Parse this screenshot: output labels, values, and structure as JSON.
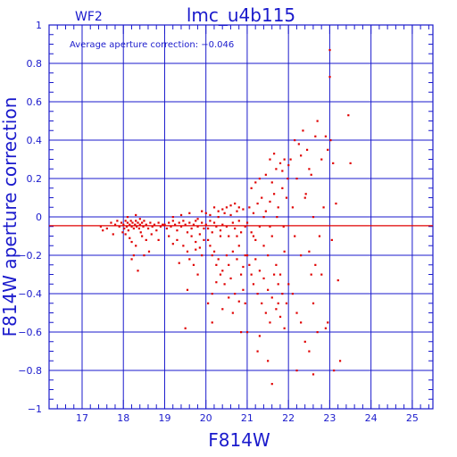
{
  "chart_data": {
    "type": "scatter",
    "title": "lmc_u4b115",
    "subtitle": "WF2",
    "xlabel": "F814W",
    "ylabel": "F814W aperture correction",
    "annotation": "Average aperture correction: −0.046",
    "xlim": [
      16.2,
      25.5
    ],
    "ylim": [
      -1,
      1
    ],
    "x_ticks": [
      17,
      18,
      19,
      20,
      21,
      22,
      23,
      24,
      25
    ],
    "y_ticks": [
      -1,
      -0.8,
      -0.6,
      -0.4,
      -0.2,
      0,
      0.2,
      0.4,
      0.6,
      0.8,
      1
    ],
    "x_tick_labels": [
      "17",
      "18",
      "19",
      "20",
      "21",
      "22",
      "23",
      "24",
      "25"
    ],
    "y_tick_labels": [
      "−1",
      "−0.8",
      "−0.6",
      "−0.4",
      "−0.2",
      "0",
      "0.2",
      "0.4",
      "0.6",
      "0.8",
      "1"
    ],
    "grid": true,
    "average_line": -0.046,
    "colors": {
      "axes": "#1a1acc",
      "points": "#e00000",
      "average_line": "#e00000"
    },
    "series": [
      {
        "points": [
          [
            17.45,
            -0.05
          ],
          [
            17.6,
            -0.06
          ],
          [
            17.7,
            -0.03
          ],
          [
            17.8,
            -0.04
          ],
          [
            17.85,
            -0.02
          ],
          [
            17.9,
            -0.05
          ],
          [
            17.95,
            -0.03
          ],
          [
            18.0,
            -0.04
          ],
          [
            18.02,
            -0.06
          ],
          [
            18.05,
            -0.02
          ],
          [
            18.08,
            -0.05
          ],
          [
            18.1,
            -0.03
          ],
          [
            18.12,
            -0.07
          ],
          [
            18.15,
            -0.04
          ],
          [
            18.18,
            -0.02
          ],
          [
            18.2,
            -0.05
          ],
          [
            18.22,
            -0.03
          ],
          [
            18.25,
            -0.06
          ],
          [
            18.28,
            -0.04
          ],
          [
            18.3,
            -0.02
          ],
          [
            18.32,
            -0.05
          ],
          [
            18.35,
            -0.03
          ],
          [
            18.38,
            -0.06
          ],
          [
            18.4,
            -0.04
          ],
          [
            18.42,
            -0.08
          ],
          [
            18.45,
            -0.03
          ],
          [
            18.48,
            -0.05
          ],
          [
            18.5,
            -0.02
          ],
          [
            18.55,
            -0.04
          ],
          [
            18.6,
            -0.06
          ],
          [
            18.65,
            -0.03
          ],
          [
            18.7,
            -0.05
          ],
          [
            18.75,
            -0.04
          ],
          [
            18.8,
            -0.07
          ],
          [
            18.85,
            -0.03
          ],
          [
            18.9,
            -0.05
          ],
          [
            18.95,
            -0.04
          ],
          [
            18.05,
            -0.09
          ],
          [
            18.15,
            -0.11
          ],
          [
            18.2,
            -0.13
          ],
          [
            18.3,
            -0.15
          ],
          [
            18.25,
            -0.2
          ],
          [
            18.35,
            -0.28
          ],
          [
            18.45,
            -0.1
          ],
          [
            18.55,
            -0.12
          ],
          [
            17.98,
            -0.08
          ],
          [
            18.1,
            0.0
          ],
          [
            18.3,
            0.01
          ],
          [
            18.4,
            -0.01
          ],
          [
            18.2,
            -0.22
          ],
          [
            18.5,
            -0.2
          ],
          [
            17.5,
            -0.07
          ],
          [
            17.75,
            -0.09
          ],
          [
            18.68,
            -0.09
          ],
          [
            18.85,
            -0.12
          ],
          [
            18.62,
            -0.18
          ],
          [
            19.0,
            -0.04
          ],
          [
            19.05,
            -0.06
          ],
          [
            19.1,
            -0.03
          ],
          [
            19.15,
            -0.05
          ],
          [
            19.2,
            -0.02
          ],
          [
            19.25,
            -0.04
          ],
          [
            19.3,
            -0.07
          ],
          [
            19.35,
            -0.03
          ],
          [
            19.4,
            -0.05
          ],
          [
            19.45,
            -0.02
          ],
          [
            19.5,
            -0.04
          ],
          [
            19.55,
            -0.08
          ],
          [
            19.6,
            -0.03
          ],
          [
            19.65,
            -0.06
          ],
          [
            19.7,
            -0.04
          ],
          [
            19.75,
            -0.02
          ],
          [
            19.8,
            -0.05
          ],
          [
            19.85,
            -0.09
          ],
          [
            19.9,
            -0.03
          ],
          [
            19.95,
            -0.06
          ],
          [
            19.1,
            -0.1
          ],
          [
            19.2,
            -0.14
          ],
          [
            19.3,
            -0.12
          ],
          [
            19.45,
            -0.15
          ],
          [
            19.55,
            -0.18
          ],
          [
            19.65,
            -0.1
          ],
          [
            19.75,
            -0.13
          ],
          [
            19.85,
            -0.16
          ],
          [
            19.95,
            -0.12
          ],
          [
            19.2,
            0.0
          ],
          [
            19.4,
            0.01
          ],
          [
            19.6,
            0.02
          ],
          [
            19.8,
            -0.01
          ],
          [
            19.9,
            0.03
          ],
          [
            19.5,
            -0.58
          ],
          [
            19.6,
            -0.22
          ],
          [
            19.7,
            -0.25
          ],
          [
            19.8,
            -0.3
          ],
          [
            19.9,
            -0.2
          ],
          [
            19.35,
            -0.24
          ],
          [
            19.55,
            -0.38
          ],
          [
            19.75,
            -0.17
          ],
          [
            20.0,
            -0.04
          ],
          [
            20.05,
            -0.06
          ],
          [
            20.1,
            -0.02
          ],
          [
            20.15,
            -0.08
          ],
          [
            20.2,
            -0.03
          ],
          [
            20.25,
            -0.05
          ],
          [
            20.3,
            0.0
          ],
          [
            20.35,
            -0.07
          ],
          [
            20.4,
            -0.04
          ],
          [
            20.45,
            0.02
          ],
          [
            20.5,
            -0.05
          ],
          [
            20.55,
            -0.1
          ],
          [
            20.6,
            0.01
          ],
          [
            20.65,
            -0.03
          ],
          [
            20.7,
            -0.06
          ],
          [
            20.75,
            0.03
          ],
          [
            20.8,
            -0.02
          ],
          [
            20.85,
            -0.08
          ],
          [
            20.9,
            0.04
          ],
          [
            20.95,
            -0.05
          ],
          [
            20.05,
            -0.12
          ],
          [
            20.1,
            -0.15
          ],
          [
            20.15,
            -0.2
          ],
          [
            20.2,
            -0.18
          ],
          [
            20.25,
            -0.25
          ],
          [
            20.3,
            -0.22
          ],
          [
            20.35,
            -0.3
          ],
          [
            20.4,
            -0.28
          ],
          [
            20.45,
            -0.35
          ],
          [
            20.5,
            -0.2
          ],
          [
            20.55,
            -0.25
          ],
          [
            20.6,
            -0.32
          ],
          [
            20.65,
            -0.18
          ],
          [
            20.7,
            -0.4
          ],
          [
            20.75,
            -0.22
          ],
          [
            20.8,
            -0.15
          ],
          [
            20.85,
            -0.3
          ],
          [
            20.9,
            -0.26
          ],
          [
            20.95,
            -0.2
          ],
          [
            20.05,
            -0.45
          ],
          [
            20.15,
            -0.55
          ],
          [
            20.25,
            -0.34
          ],
          [
            20.4,
            -0.48
          ],
          [
            20.55,
            -0.42
          ],
          [
            20.65,
            -0.5
          ],
          [
            20.8,
            -0.44
          ],
          [
            20.9,
            -0.38
          ],
          [
            20.0,
            0.02
          ],
          [
            20.2,
            0.05
          ],
          [
            20.4,
            0.04
          ],
          [
            20.6,
            0.06
          ],
          [
            20.8,
            0.05
          ],
          [
            20.1,
            0.01
          ],
          [
            20.3,
            0.03
          ],
          [
            20.5,
            0.05
          ],
          [
            20.7,
            0.07
          ],
          [
            20.15,
            -0.4
          ],
          [
            20.35,
            -0.1
          ],
          [
            20.75,
            -0.1
          ],
          [
            20.95,
            -0.45
          ],
          [
            20.85,
            -0.6
          ],
          [
            21.0,
            -0.03
          ],
          [
            21.05,
            0.05
          ],
          [
            21.1,
            -0.08
          ],
          [
            21.15,
            0.02
          ],
          [
            21.2,
            -0.12
          ],
          [
            21.25,
            0.07
          ],
          [
            21.3,
            -0.05
          ],
          [
            21.35,
            0.1
          ],
          [
            21.4,
            -0.15
          ],
          [
            21.45,
            0.03
          ],
          [
            21.5,
            -0.2
          ],
          [
            21.55,
            0.08
          ],
          [
            21.6,
            -0.1
          ],
          [
            21.65,
            0.12
          ],
          [
            21.7,
            -0.25
          ],
          [
            21.75,
            0.05
          ],
          [
            21.8,
            -0.3
          ],
          [
            21.85,
            0.15
          ],
          [
            21.9,
            -0.18
          ],
          [
            21.95,
            0.1
          ],
          [
            21.0,
            -0.2
          ],
          [
            21.05,
            -0.25
          ],
          [
            21.1,
            -0.3
          ],
          [
            21.15,
            -0.35
          ],
          [
            21.2,
            -0.22
          ],
          [
            21.25,
            -0.4
          ],
          [
            21.3,
            -0.28
          ],
          [
            21.35,
            -0.45
          ],
          [
            21.4,
            -0.32
          ],
          [
            21.45,
            -0.5
          ],
          [
            21.5,
            -0.38
          ],
          [
            21.55,
            -0.55
          ],
          [
            21.6,
            -0.42
          ],
          [
            21.65,
            -0.3
          ],
          [
            21.7,
            -0.48
          ],
          [
            21.75,
            -0.35
          ],
          [
            21.8,
            -0.52
          ],
          [
            21.85,
            -0.4
          ],
          [
            21.9,
            -0.58
          ],
          [
            21.95,
            -0.45
          ],
          [
            21.1,
            0.15
          ],
          [
            21.2,
            0.18
          ],
          [
            21.3,
            0.2
          ],
          [
            21.45,
            0.22
          ],
          [
            21.6,
            0.18
          ],
          [
            21.7,
            0.25
          ],
          [
            21.8,
            0.28
          ],
          [
            21.9,
            0.3
          ],
          [
            21.55,
            0.3
          ],
          [
            21.65,
            0.33
          ],
          [
            21.85,
            0.24
          ],
          [
            21.98,
            0.2
          ],
          [
            21.0,
            -0.6
          ],
          [
            21.25,
            -0.7
          ],
          [
            21.6,
            -0.87
          ],
          [
            21.3,
            -0.62
          ],
          [
            21.5,
            -0.75
          ],
          [
            21.75,
            -0.45
          ],
          [
            21.15,
            -0.1
          ],
          [
            21.4,
            0.0
          ],
          [
            21.55,
            -0.05
          ],
          [
            21.72,
            0.0
          ],
          [
            21.88,
            -0.05
          ],
          [
            22.0,
            0.27
          ],
          [
            22.05,
            0.3
          ],
          [
            22.1,
            0.05
          ],
          [
            22.15,
            -0.1
          ],
          [
            22.2,
            0.2
          ],
          [
            22.25,
            0.38
          ],
          [
            22.3,
            -0.2
          ],
          [
            22.35,
            0.45
          ],
          [
            22.4,
            0.1
          ],
          [
            22.45,
            0.35
          ],
          [
            22.5,
            0.25
          ],
          [
            22.55,
            -0.3
          ],
          [
            22.6,
            0.0
          ],
          [
            22.65,
            0.42
          ],
          [
            22.7,
            0.5
          ],
          [
            22.75,
            -0.1
          ],
          [
            22.8,
            0.3
          ],
          [
            22.85,
            0.05
          ],
          [
            22.9,
            0.42
          ],
          [
            22.95,
            0.35
          ],
          [
            22.0,
            -0.35
          ],
          [
            22.1,
            -0.4
          ],
          [
            22.2,
            -0.5
          ],
          [
            22.3,
            -0.55
          ],
          [
            22.4,
            -0.65
          ],
          [
            22.5,
            -0.7
          ],
          [
            22.6,
            -0.45
          ],
          [
            22.7,
            -0.6
          ],
          [
            22.8,
            -0.3
          ],
          [
            22.9,
            -0.58
          ],
          [
            22.95,
            -0.55
          ],
          [
            22.2,
            -0.8
          ],
          [
            22.6,
            -0.82
          ],
          [
            22.5,
            -0.18
          ],
          [
            22.65,
            -0.25
          ],
          [
            22.42,
            0.12
          ],
          [
            22.55,
            0.22
          ],
          [
            22.3,
            0.32
          ],
          [
            22.15,
            0.4
          ],
          [
            23.0,
            0.87
          ],
          [
            23.0,
            0.73
          ],
          [
            23.2,
            -0.33
          ],
          [
            23.05,
            -0.12
          ],
          [
            23.15,
            0.07
          ],
          [
            23.25,
            -0.75
          ],
          [
            23.45,
            0.53
          ],
          [
            23.5,
            0.28
          ],
          [
            23.08,
            0.28
          ],
          [
            23.02,
            0.4
          ],
          [
            23.1,
            -0.8
          ]
        ]
      }
    ]
  }
}
